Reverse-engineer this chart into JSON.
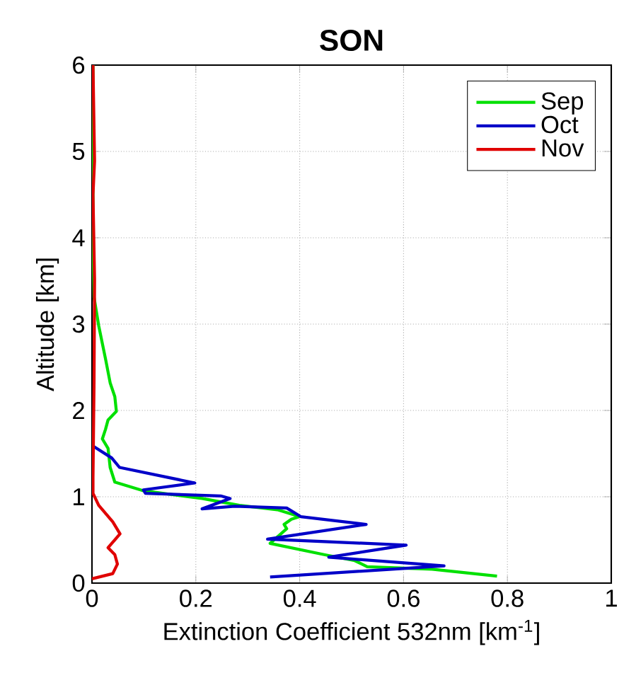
{
  "chart_data": {
    "type": "line",
    "title": "SON",
    "xlabel": "Extinction Coefficient 532nm  [km$^{-1}$]",
    "ylabel": "Altitude [km]",
    "xlim": [
      0,
      1
    ],
    "ylim": [
      0,
      6
    ],
    "xticks": [
      0,
      0.2,
      0.4,
      0.6,
      0.8,
      1
    ],
    "yticks": [
      0,
      1,
      2,
      3,
      4,
      5,
      6
    ],
    "grid": true,
    "legend": "top right",
    "line_style": "solid",
    "marker": "none",
    "series": [
      {
        "name": "Sep",
        "color": "#00e000",
        "x": [
          0.78,
          0.655,
          0.53,
          0.506,
          0.447,
          0.343,
          0.375,
          0.37,
          0.384,
          0.4,
          0.357,
          0.284,
          0.212,
          0.099,
          0.044,
          0.035,
          0.031,
          0.02,
          0.026,
          0.031,
          0.047,
          0.044,
          0.035,
          0.026,
          0.013,
          0.004,
          0.002,
          0.002
        ],
        "values": [
          0.08,
          0.16,
          0.19,
          0.26,
          0.33,
          0.46,
          0.63,
          0.68,
          0.74,
          0.77,
          0.85,
          0.9,
          0.98,
          1.07,
          1.17,
          1.34,
          1.56,
          1.67,
          1.78,
          1.89,
          1.99,
          2.16,
          2.32,
          2.6,
          2.98,
          3.31,
          3.96,
          6.0
        ]
      },
      {
        "name": "Oct",
        "color": "#0000c8",
        "x": [
          0.343,
          0.678,
          0.456,
          0.605,
          0.338,
          0.528,
          0.402,
          0.375,
          0.275,
          0.212,
          0.266,
          0.248,
          0.103,
          0.099,
          0.198,
          0.053,
          0.038,
          0.004
        ],
        "values": [
          0.07,
          0.2,
          0.3,
          0.44,
          0.51,
          0.68,
          0.77,
          0.87,
          0.89,
          0.86,
          0.98,
          1.01,
          1.04,
          1.08,
          1.16,
          1.34,
          1.45,
          1.58
        ]
      },
      {
        "name": "Nov",
        "color": "#e00000",
        "x": [
          0.0,
          0.04,
          0.049,
          0.044,
          0.031,
          0.054,
          0.04,
          0.013,
          0.002,
          0.002,
          0.004,
          0.005,
          0.002,
          0.005,
          0.002
        ],
        "values": [
          0.05,
          0.11,
          0.22,
          0.33,
          0.41,
          0.57,
          0.71,
          0.9,
          1.04,
          1.23,
          2.32,
          3.52,
          4.5,
          4.89,
          6.0
        ]
      }
    ]
  }
}
